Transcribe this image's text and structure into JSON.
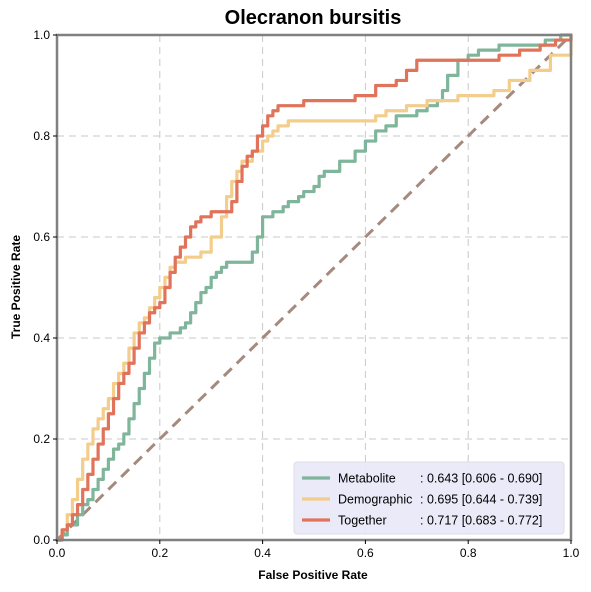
{
  "chart_data": {
    "type": "line",
    "title": "Olecranon bursitis",
    "xlabel": "False Positive Rate",
    "ylabel": "True Positive Rate",
    "xlim": [
      0,
      1
    ],
    "ylim": [
      0,
      1
    ],
    "xticks": [
      "0.0",
      "0.2",
      "0.4",
      "0.6",
      "0.8",
      "1.0"
    ],
    "yticks": [
      "0.0",
      "0.2",
      "0.4",
      "0.6",
      "0.8",
      "1.0"
    ],
    "grid": true,
    "legend_position": "lower-right",
    "colors": {
      "metabolite": "#7fb59a",
      "demographic": "#f3cd8c",
      "together": "#e0735a",
      "diagonal": "#a58a7d",
      "grid": "#c8c8c8",
      "legend_bg": "#e8e8f8",
      "frame": "#808080"
    },
    "legend": [
      {
        "name": "Metabolite",
        "auc": ": 0.643 [0.606 - 0.690]"
      },
      {
        "name": "Demographic",
        "auc": ": 0.695 [0.644 - 0.739]"
      },
      {
        "name": "Together",
        "auc": ": 0.717 [0.683 - 0.772]"
      }
    ],
    "series": [
      {
        "name": "Metabolite",
        "x": [
          0,
          0.01,
          0.02,
          0.04,
          0.05,
          0.06,
          0.07,
          0.08,
          0.09,
          0.1,
          0.11,
          0.12,
          0.13,
          0.14,
          0.15,
          0.16,
          0.17,
          0.18,
          0.19,
          0.2,
          0.22,
          0.24,
          0.25,
          0.26,
          0.27,
          0.28,
          0.29,
          0.3,
          0.31,
          0.32,
          0.33,
          0.34,
          0.35,
          0.36,
          0.38,
          0.39,
          0.4,
          0.41,
          0.42,
          0.43,
          0.44,
          0.45,
          0.46,
          0.47,
          0.48,
          0.5,
          0.51,
          0.52,
          0.53,
          0.55,
          0.56,
          0.58,
          0.6,
          0.62,
          0.64,
          0.66,
          0.68,
          0.7,
          0.72,
          0.73,
          0.74,
          0.75,
          0.76,
          0.78,
          0.8,
          0.82,
          0.86,
          0.9,
          0.95,
          0.98,
          1.0
        ],
        "y": [
          0,
          0.01,
          0.03,
          0.05,
          0.07,
          0.08,
          0.1,
          0.12,
          0.14,
          0.16,
          0.18,
          0.19,
          0.21,
          0.24,
          0.27,
          0.3,
          0.33,
          0.36,
          0.39,
          0.4,
          0.41,
          0.42,
          0.43,
          0.45,
          0.47,
          0.49,
          0.5,
          0.52,
          0.53,
          0.54,
          0.55,
          0.55,
          0.55,
          0.55,
          0.57,
          0.6,
          0.64,
          0.64,
          0.65,
          0.65,
          0.66,
          0.67,
          0.67,
          0.68,
          0.69,
          0.7,
          0.72,
          0.73,
          0.73,
          0.75,
          0.75,
          0.77,
          0.79,
          0.81,
          0.82,
          0.84,
          0.84,
          0.85,
          0.86,
          0.86,
          0.87,
          0.89,
          0.92,
          0.95,
          0.96,
          0.97,
          0.98,
          0.98,
          0.99,
          1.0,
          1.0
        ]
      },
      {
        "name": "Demographic",
        "x": [
          0,
          0.01,
          0.02,
          0.03,
          0.04,
          0.05,
          0.06,
          0.07,
          0.08,
          0.09,
          0.1,
          0.11,
          0.12,
          0.13,
          0.14,
          0.15,
          0.16,
          0.17,
          0.18,
          0.19,
          0.2,
          0.21,
          0.22,
          0.23,
          0.24,
          0.25,
          0.26,
          0.27,
          0.28,
          0.3,
          0.32,
          0.33,
          0.34,
          0.35,
          0.36,
          0.38,
          0.4,
          0.41,
          0.42,
          0.43,
          0.44,
          0.45,
          0.46,
          0.5,
          0.54,
          0.56,
          0.58,
          0.6,
          0.62,
          0.64,
          0.66,
          0.68,
          0.7,
          0.72,
          0.74,
          0.76,
          0.78,
          0.8,
          0.82,
          0.85,
          0.88,
          0.92,
          0.96,
          1.0
        ],
        "y": [
          0,
          0.02,
          0.05,
          0.08,
          0.12,
          0.16,
          0.19,
          0.22,
          0.24,
          0.26,
          0.28,
          0.31,
          0.33,
          0.35,
          0.38,
          0.41,
          0.43,
          0.44,
          0.46,
          0.48,
          0.5,
          0.52,
          0.54,
          0.55,
          0.55,
          0.56,
          0.56,
          0.56,
          0.57,
          0.6,
          0.64,
          0.68,
          0.71,
          0.73,
          0.75,
          0.77,
          0.79,
          0.8,
          0.81,
          0.82,
          0.82,
          0.83,
          0.83,
          0.83,
          0.83,
          0.83,
          0.83,
          0.83,
          0.84,
          0.85,
          0.85,
          0.86,
          0.86,
          0.87,
          0.87,
          0.87,
          0.88,
          0.88,
          0.88,
          0.89,
          0.91,
          0.93,
          0.96,
          1.0
        ]
      },
      {
        "name": "Together",
        "x": [
          0,
          0.01,
          0.02,
          0.03,
          0.04,
          0.05,
          0.06,
          0.07,
          0.08,
          0.09,
          0.1,
          0.11,
          0.12,
          0.13,
          0.14,
          0.15,
          0.16,
          0.17,
          0.18,
          0.19,
          0.2,
          0.21,
          0.22,
          0.23,
          0.24,
          0.25,
          0.26,
          0.27,
          0.28,
          0.3,
          0.32,
          0.34,
          0.35,
          0.36,
          0.37,
          0.38,
          0.39,
          0.4,
          0.41,
          0.42,
          0.43,
          0.44,
          0.46,
          0.48,
          0.5,
          0.54,
          0.58,
          0.62,
          0.64,
          0.66,
          0.68,
          0.7,
          0.74,
          0.8,
          0.86,
          0.9,
          0.94,
          0.97,
          1.0
        ],
        "y": [
          0,
          0.02,
          0.03,
          0.05,
          0.07,
          0.1,
          0.13,
          0.16,
          0.19,
          0.22,
          0.25,
          0.28,
          0.31,
          0.33,
          0.35,
          0.38,
          0.41,
          0.43,
          0.45,
          0.46,
          0.47,
          0.5,
          0.53,
          0.56,
          0.58,
          0.6,
          0.62,
          0.63,
          0.64,
          0.65,
          0.65,
          0.67,
          0.71,
          0.74,
          0.76,
          0.77,
          0.8,
          0.82,
          0.84,
          0.85,
          0.86,
          0.86,
          0.86,
          0.87,
          0.87,
          0.87,
          0.88,
          0.9,
          0.9,
          0.91,
          0.93,
          0.95,
          0.95,
          0.95,
          0.96,
          0.97,
          0.98,
          0.99,
          1.0
        ]
      }
    ]
  }
}
